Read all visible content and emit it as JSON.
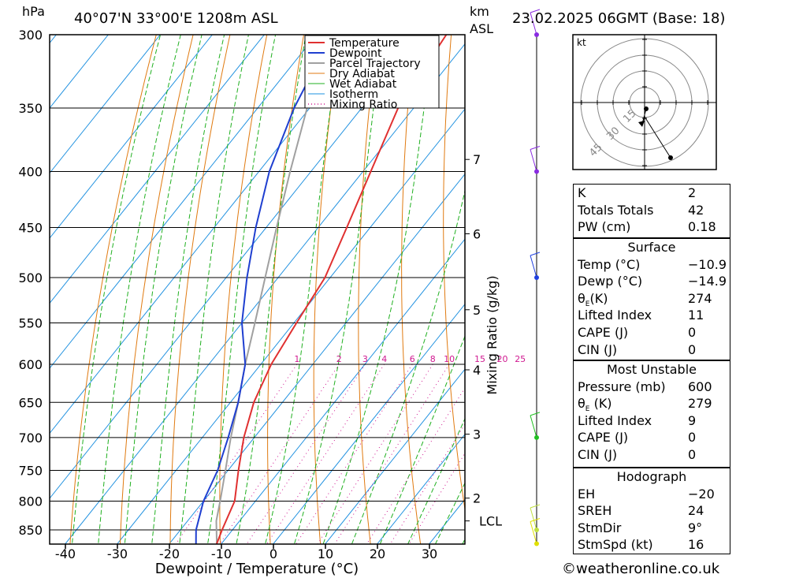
{
  "header": {
    "pressure_unit": "hPa",
    "location": "40°07'N  33°00'E  1208m  ASL",
    "height_unit_line1": "km",
    "height_unit_line2": "ASL",
    "datetime": "23.02.2025  06GMT  (Base: 18)"
  },
  "footer": {
    "copyright": "©weatheronline.co.uk"
  },
  "chart_data": {
    "type": "line",
    "title": "40°07'N  33°00'E  1208m  ASL",
    "xlabel": "Dewpoint / Temperature (°C)",
    "ylabel": "hPa",
    "secondary_ylabel": "Mixing Ratio (g/kg)",
    "xlim": [
      -44,
      36
    ],
    "ylim": [
      880,
      300
    ],
    "x_ticks": [
      "-40",
      "-30",
      "-20",
      "-10",
      "0",
      "10",
      "20",
      "30"
    ],
    "x_tick_values": [
      -40,
      -30,
      -20,
      -10,
      0,
      10,
      20,
      30
    ],
    "pressure_levels": [
      300,
      350,
      400,
      450,
      500,
      550,
      600,
      650,
      700,
      750,
      800,
      850
    ],
    "pressure_labels": [
      "300",
      "350",
      "400",
      "450",
      "500",
      "550",
      "600",
      "650",
      "700",
      "750",
      "800",
      "850"
    ],
    "height_labels": [
      {
        "label": "7",
        "p": 390
      },
      {
        "label": "6",
        "p": 456
      },
      {
        "label": "5",
        "p": 535
      },
      {
        "label": "4",
        "p": 607
      },
      {
        "label": "3",
        "p": 695
      },
      {
        "label": "2",
        "p": 795
      },
      {
        "label": "LCL",
        "p": 834
      }
    ],
    "mixing_ratio_labels": [
      "1",
      "2",
      "3",
      "4",
      "6",
      "8",
      "10",
      "15",
      "20",
      "25"
    ],
    "mixing_ratio_values": [
      1,
      2,
      3,
      4,
      6,
      8,
      10,
      15,
      20,
      25
    ],
    "legend": [
      "Temperature",
      "Dewpoint",
      "Parcel Trajectory",
      "Dry Adiabat",
      "Wet Adiabat",
      "Isotherm",
      "Mixing Ratio"
    ],
    "legend_position": "top-right",
    "colors": {
      "temperature": "#e03030",
      "dewpoint": "#1f3fd0",
      "parcel": "#a0a0a0",
      "dry_adiabat": "#e07a10",
      "wet_adiabat": "#20b020",
      "isotherm": "#1e90e0",
      "mixing_ratio": "#d01890"
    },
    "series": [
      {
        "name": "Temperature",
        "points": [
          [
            875,
            -10.9
          ],
          [
            850,
            -12
          ],
          [
            800,
            -14
          ],
          [
            750,
            -18
          ],
          [
            700,
            -22
          ],
          [
            650,
            -25.5
          ],
          [
            600,
            -28
          ],
          [
            550,
            -29.5
          ],
          [
            500,
            -31
          ],
          [
            450,
            -34.5
          ],
          [
            400,
            -38.5
          ],
          [
            350,
            -43
          ],
          [
            300,
            -45
          ]
        ]
      },
      {
        "name": "Dewpoint",
        "points": [
          [
            875,
            -14.9
          ],
          [
            850,
            -17
          ],
          [
            800,
            -20
          ],
          [
            750,
            -22
          ],
          [
            700,
            -25
          ],
          [
            650,
            -28.5
          ],
          [
            600,
            -33
          ],
          [
            550,
            -40
          ],
          [
            500,
            -46
          ],
          [
            450,
            -52
          ],
          [
            400,
            -58
          ],
          [
            350,
            -63
          ],
          [
            300,
            -67
          ]
        ]
      },
      {
        "name": "Parcel Trajectory",
        "points": [
          [
            875,
            -10.9
          ],
          [
            834,
            -14.5
          ],
          [
            800,
            -16.8
          ],
          [
            750,
            -20.5
          ],
          [
            700,
            -24.5
          ],
          [
            650,
            -28.5
          ],
          [
            600,
            -33
          ],
          [
            550,
            -37.5
          ],
          [
            500,
            -42.5
          ],
          [
            450,
            -48
          ],
          [
            400,
            -54
          ],
          [
            350,
            -60.5
          ],
          [
            300,
            -67.5
          ]
        ]
      }
    ],
    "wind_profile": [
      {
        "p": 300,
        "color": "#8a2be2"
      },
      {
        "p": 400,
        "color": "#8a2be2"
      },
      {
        "p": 500,
        "color": "#2040e0"
      },
      {
        "p": 700,
        "color": "#20c020"
      },
      {
        "p": 850,
        "color": "#c0e040"
      },
      {
        "p": 875,
        "color": "#e0e000"
      }
    ]
  },
  "hodograph": {
    "unit_label": "kt",
    "ring_labels": [
      "15",
      "30",
      "45"
    ]
  },
  "indices": {
    "k_label": "K",
    "k_value": "2",
    "tt_label": "Totals Totals",
    "tt_value": "42",
    "pw_label": "PW (cm)",
    "pw_value": "0.18"
  },
  "surface": {
    "title": "Surface",
    "temp_label": "Temp (°C)",
    "temp_value": "−10.9",
    "dewp_label": "Dewp (°C)",
    "dewp_value": "−14.9",
    "theta_label": "θ",
    "theta_sub": "E",
    "theta_unit": "(K)",
    "theta_value": "274",
    "li_label": "Lifted Index",
    "li_value": "11",
    "cape_label": "CAPE (J)",
    "cape_value": "0",
    "cin_label": "CIN (J)",
    "cin_value": "0"
  },
  "most_unstable": {
    "title": "Most Unstable",
    "pressure_label": "Pressure (mb)",
    "pressure_value": "600",
    "theta_label": "θ",
    "theta_sub": "E",
    "theta_unit": " (K)",
    "theta_value": "279",
    "li_label": "Lifted Index",
    "li_value": "9",
    "cape_label": "CAPE (J)",
    "cape_value": "0",
    "cin_label": "CIN (J)",
    "cin_value": "0"
  },
  "hodo_table": {
    "title": "Hodograph",
    "eh_label": "EH",
    "eh_value": "−20",
    "sreh_label": "SREH",
    "sreh_value": "24",
    "stmdir_label": "StmDir",
    "stmdir_value": "9°",
    "stmspd_label": "StmSpd (kt)",
    "stmspd_value": "16"
  }
}
